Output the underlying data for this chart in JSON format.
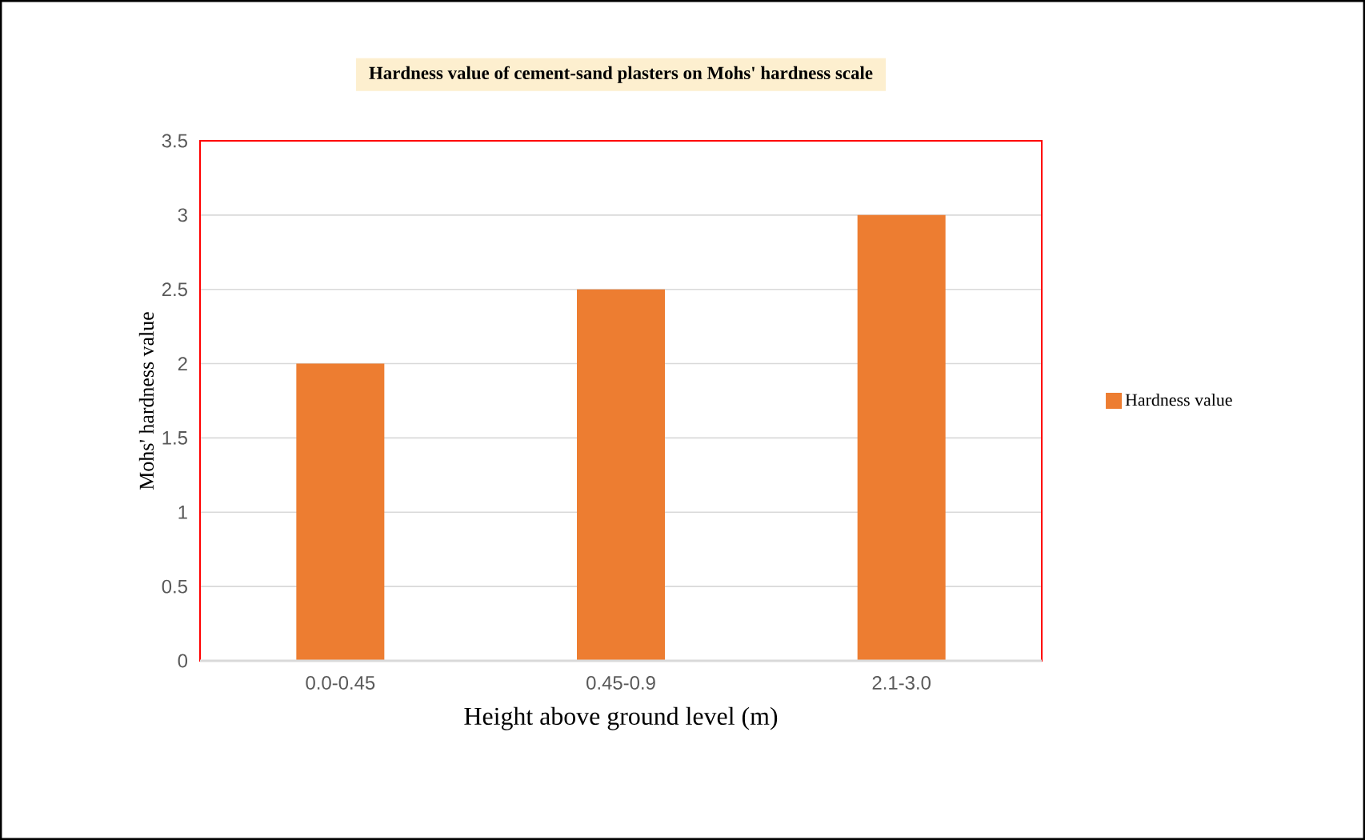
{
  "chart_data": {
    "type": "bar",
    "title": "Hardness value of cement-sand plasters on Mohs' hardness scale",
    "xlabel": "Height above ground level (m)",
    "ylabel": "Mohs' hardness value",
    "categories": [
      "0.0-0.45",
      "0.45-0.9",
      "2.1-3.0"
    ],
    "series": [
      {
        "name": "Hardness value",
        "color": "#ed7d31",
        "values": [
          2,
          2.5,
          3
        ]
      }
    ],
    "ylim": [
      0,
      3.5
    ],
    "yticks": [
      0,
      0.5,
      1,
      1.5,
      2,
      2.5,
      3,
      3.5
    ],
    "grid": "y",
    "legend": "right"
  }
}
